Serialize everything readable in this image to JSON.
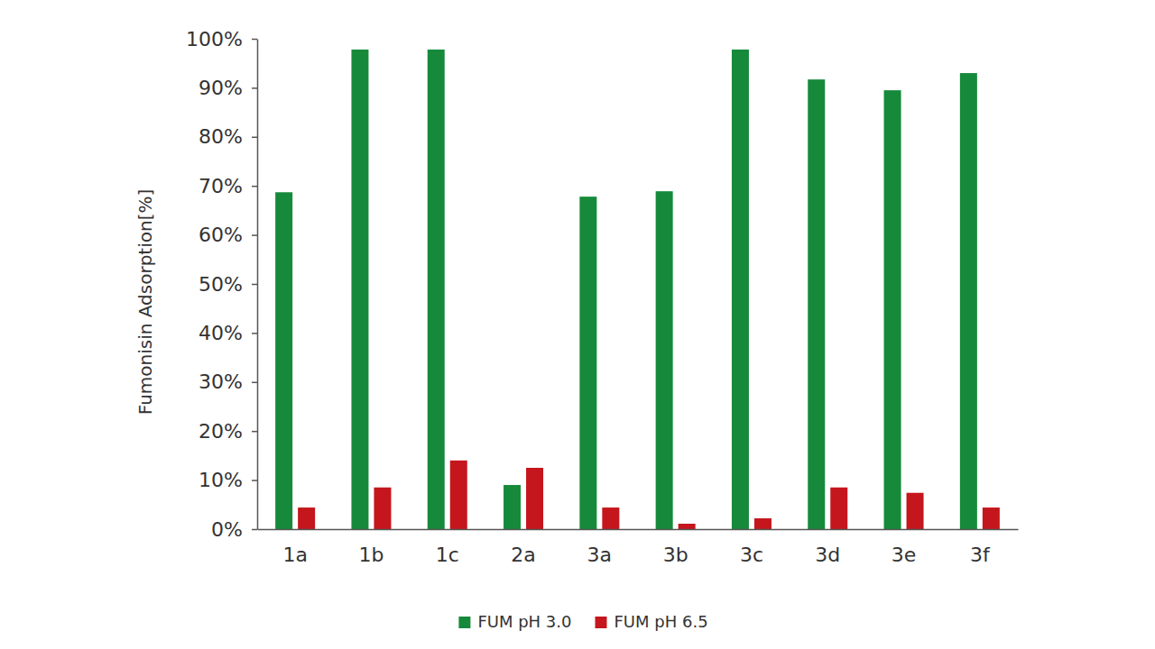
{
  "chart_data": {
    "type": "bar",
    "y_label": "Fumonisin Adsorption[%]",
    "categories": [
      "1a",
      "1b",
      "1c",
      "2a",
      "3a",
      "3b",
      "3c",
      "3d",
      "3e",
      "3f"
    ],
    "series": [
      {
        "name": "FUM pH 3.0",
        "color": "#168a3a",
        "values": [
          68.7,
          97.8,
          97.8,
          9.0,
          67.8,
          68.9,
          97.8,
          91.7,
          89.5,
          93.0
        ]
      },
      {
        "name": "FUM pH 6.5",
        "color": "#c4161c",
        "values": [
          4.4,
          8.5,
          14.0,
          12.5,
          4.4,
          1.1,
          2.2,
          8.5,
          7.4,
          4.4
        ]
      }
    ],
    "ylim": [
      0,
      100
    ],
    "yticks": [
      {
        "value": 0,
        "label": "0%"
      },
      {
        "value": 10,
        "label": "10%"
      },
      {
        "value": 20,
        "label": "20%"
      },
      {
        "value": 30,
        "label": "30%"
      },
      {
        "value": 40,
        "label": "40%"
      },
      {
        "value": 50,
        "label": "50%"
      },
      {
        "value": 60,
        "label": "60%"
      },
      {
        "value": 70,
        "label": "70%"
      },
      {
        "value": 80,
        "label": "80%"
      },
      {
        "value": 90,
        "label": "90%"
      },
      {
        "value": 100,
        "label": "100%"
      }
    ],
    "grid": false,
    "legend": "bottom"
  }
}
